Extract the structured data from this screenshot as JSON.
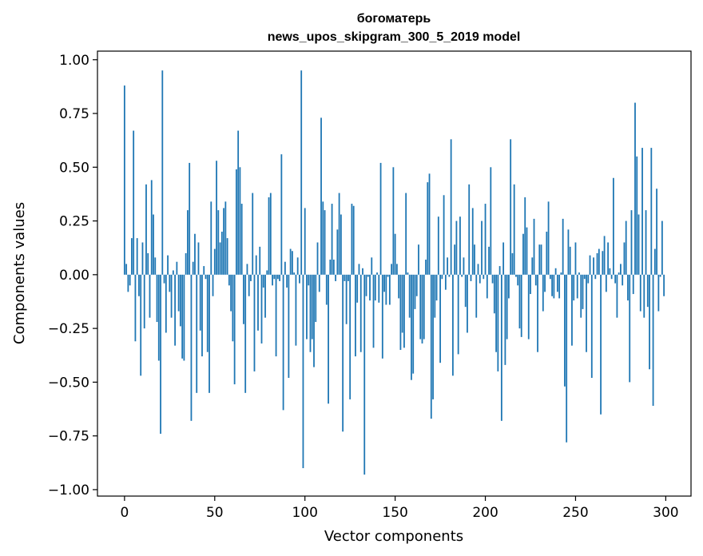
{
  "chart_data": {
    "type": "bar",
    "title_lines": [
      "богоматерь",
      "news_upos_skipgram_300_5_2019 model"
    ],
    "xlabel": "Vector components",
    "ylabel": "Components values",
    "xlim": [
      -15,
      314
    ],
    "ylim": [
      -1.03,
      1.04
    ],
    "x_ticks": [
      0,
      50,
      100,
      150,
      200,
      250,
      300
    ],
    "y_ticks": [
      1.0,
      0.75,
      0.5,
      0.25,
      0.0,
      -0.25,
      -0.5,
      -0.75,
      -1.0
    ],
    "y_tick_labels": [
      "1.00",
      "0.75",
      "0.50",
      "0.25",
      "0.00",
      "−0.25",
      "−0.50",
      "−0.75",
      "−1.00"
    ],
    "bar_color": "#1f77b4",
    "values": [
      0.88,
      0.05,
      -0.08,
      -0.05,
      0.17,
      0.67,
      -0.31,
      0.17,
      -0.1,
      -0.47,
      0.15,
      -0.25,
      0.42,
      0.1,
      -0.2,
      0.44,
      0.28,
      0.08,
      -0.22,
      -0.4,
      -0.74,
      0.95,
      -0.04,
      -0.27,
      0.09,
      -0.08,
      -0.2,
      0.02,
      -0.33,
      0.06,
      -0.17,
      -0.24,
      -0.39,
      -0.4,
      0.1,
      0.3,
      0.52,
      -0.68,
      0.06,
      0.19,
      -0.55,
      0.15,
      -0.26,
      -0.38,
      0.04,
      -0.02,
      -0.36,
      -0.55,
      0.34,
      -0.1,
      0.12,
      0.53,
      0.3,
      0.15,
      0.2,
      0.31,
      0.34,
      0.17,
      -0.05,
      -0.17,
      -0.31,
      -0.51,
      0.49,
      0.67,
      0.5,
      0.33,
      -0.23,
      -0.55,
      0.05,
      -0.1,
      -0.03,
      0.38,
      -0.45,
      0.09,
      -0.26,
      0.13,
      -0.32,
      -0.06,
      -0.2,
      0.02,
      0.36,
      0.38,
      -0.05,
      -0.02,
      -0.38,
      -0.02,
      -0.03,
      0.56,
      -0.63,
      0.06,
      -0.06,
      -0.48,
      0.12,
      0.11,
      0.01,
      -0.33,
      0.08,
      -0.04,
      0.95,
      -0.9,
      0.31,
      -0.3,
      -0.05,
      -0.36,
      -0.3,
      -0.43,
      -0.22,
      0.15,
      -0.08,
      0.73,
      0.34,
      0.3,
      -0.14,
      -0.6,
      0.07,
      0.33,
      0.07,
      -0.03,
      0.21,
      0.38,
      0.28,
      -0.73,
      -0.03,
      -0.23,
      -0.03,
      -0.58,
      0.33,
      0.32,
      -0.38,
      -0.13,
      0.05,
      -0.36,
      0.03,
      -0.93,
      -0.1,
      -0.01,
      -0.12,
      0.08,
      -0.34,
      -0.12,
      0.01,
      -0.13,
      0.52,
      -0.39,
      -0.08,
      -0.14,
      -0.01,
      -0.14,
      0.05,
      0.5,
      0.19,
      0.05,
      -0.11,
      -0.35,
      -0.27,
      -0.34,
      0.38,
      0.01,
      -0.2,
      -0.49,
      -0.46,
      -0.16,
      -0.1,
      0.14,
      -0.3,
      -0.32,
      -0.3,
      0.07,
      0.43,
      0.47,
      -0.67,
      -0.58,
      -0.2,
      -0.12,
      0.27,
      -0.41,
      -0.02,
      0.37,
      -0.07,
      0.08,
      -0.01,
      0.63,
      -0.47,
      0.14,
      0.25,
      -0.37,
      0.27,
      -0.01,
      0.08,
      -0.15,
      -0.27,
      0.42,
      -0.03,
      0.31,
      0.14,
      -0.2,
      0.05,
      -0.04,
      0.25,
      -0.02,
      0.33,
      -0.11,
      0.13,
      0.5,
      -0.04,
      -0.18,
      -0.36,
      -0.45,
      0.04,
      -0.68,
      0.15,
      -0.42,
      -0.3,
      -0.11,
      0.63,
      0.1,
      0.42,
      -0.01,
      -0.05,
      -0.25,
      -0.29,
      0.19,
      0.36,
      0.22,
      -0.3,
      -0.09,
      0.08,
      0.26,
      -0.05,
      -0.36,
      0.14,
      0.14,
      -0.17,
      -0.08,
      0.2,
      0.34,
      -0.02,
      -0.1,
      -0.11,
      0.03,
      -0.08,
      -0.11,
      0.01,
      0.26,
      -0.52,
      -0.78,
      0.21,
      0.13,
      -0.33,
      -0.12,
      0.15,
      -0.11,
      0.01,
      -0.2,
      -0.16,
      -0.02,
      -0.36,
      -0.04,
      0.09,
      -0.48,
      0.08,
      -0.02,
      0.1,
      0.12,
      -0.65,
      0.11,
      0.18,
      -0.08,
      0.15,
      0.03,
      -0.02,
      0.45,
      -0.04,
      -0.2,
      0.01,
      0.05,
      -0.05,
      0.15,
      0.25,
      -0.12,
      -0.5,
      0.3,
      -0.09,
      0.8,
      0.55,
      0.28,
      -0.17,
      0.59,
      -0.2,
      0.3,
      -0.15,
      -0.44,
      0.59,
      -0.61,
      0.12,
      0.4,
      -0.17,
      -0.01,
      0.25,
      -0.1
    ]
  }
}
